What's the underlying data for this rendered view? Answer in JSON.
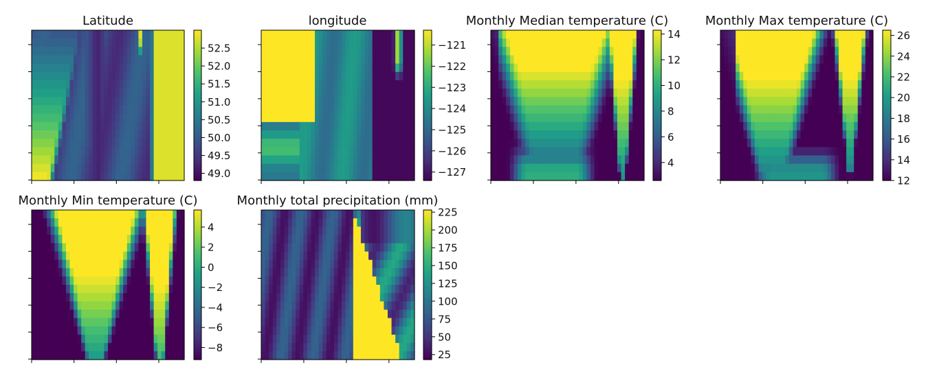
{
  "figure": {
    "colormap": "viridis",
    "colormap_stops": [
      "#440154",
      "#46327e",
      "#365c8d",
      "#277f8e",
      "#1fa187",
      "#4ac16d",
      "#a0da39",
      "#fde725"
    ]
  },
  "chart_data": [
    {
      "type": "heatmap",
      "title": "Latitude",
      "colorbar": {
        "ticks": [
          "49.0",
          "49.5",
          "50.0",
          "50.5",
          "51.0",
          "51.5",
          "52.0",
          "52.5"
        ],
        "range": [
          48.8,
          53.0
        ]
      },
      "x_ticks": 4,
      "y_ticks": 6,
      "grid": false
    },
    {
      "type": "heatmap",
      "title": "longitude",
      "colorbar": {
        "ticks": [
          "−127",
          "−126",
          "−125",
          "−124",
          "−123",
          "−122",
          "−121"
        ],
        "range": [
          -127.4,
          -120.3
        ]
      },
      "x_ticks": 4,
      "y_ticks": 6,
      "grid": false
    },
    {
      "type": "heatmap",
      "title": "Monthly Median temperature (C)",
      "colorbar": {
        "ticks": [
          "4",
          "6",
          "8",
          "10",
          "12",
          "14"
        ],
        "range": [
          2.6,
          14.3
        ]
      },
      "x_ticks": 4,
      "y_ticks": 6,
      "grid": false
    },
    {
      "type": "heatmap",
      "title": "Monthly Max temperature (C)",
      "colorbar": {
        "ticks": [
          "12",
          "14",
          "16",
          "18",
          "20",
          "22",
          "24",
          "26"
        ],
        "range": [
          12.0,
          26.5
        ]
      },
      "x_ticks": 4,
      "y_ticks": 6,
      "grid": false
    },
    {
      "type": "heatmap",
      "title": "Monthly Min temperature (C)",
      "colorbar": {
        "ticks": [
          "−8",
          "−6",
          "−4",
          "−2",
          "0",
          "2",
          "4"
        ],
        "range": [
          -9.2,
          5.7
        ]
      },
      "x_ticks": 4,
      "y_ticks": 6,
      "grid": false
    },
    {
      "type": "heatmap",
      "title": "Monthly total precipitation (mm)",
      "colorbar": {
        "ticks": [
          "25",
          "50",
          "75",
          "100",
          "125",
          "150",
          "175",
          "200",
          "225"
        ],
        "range": [
          18,
          228
        ]
      },
      "x_ticks": 4,
      "y_ticks": 6,
      "grid": false
    }
  ]
}
